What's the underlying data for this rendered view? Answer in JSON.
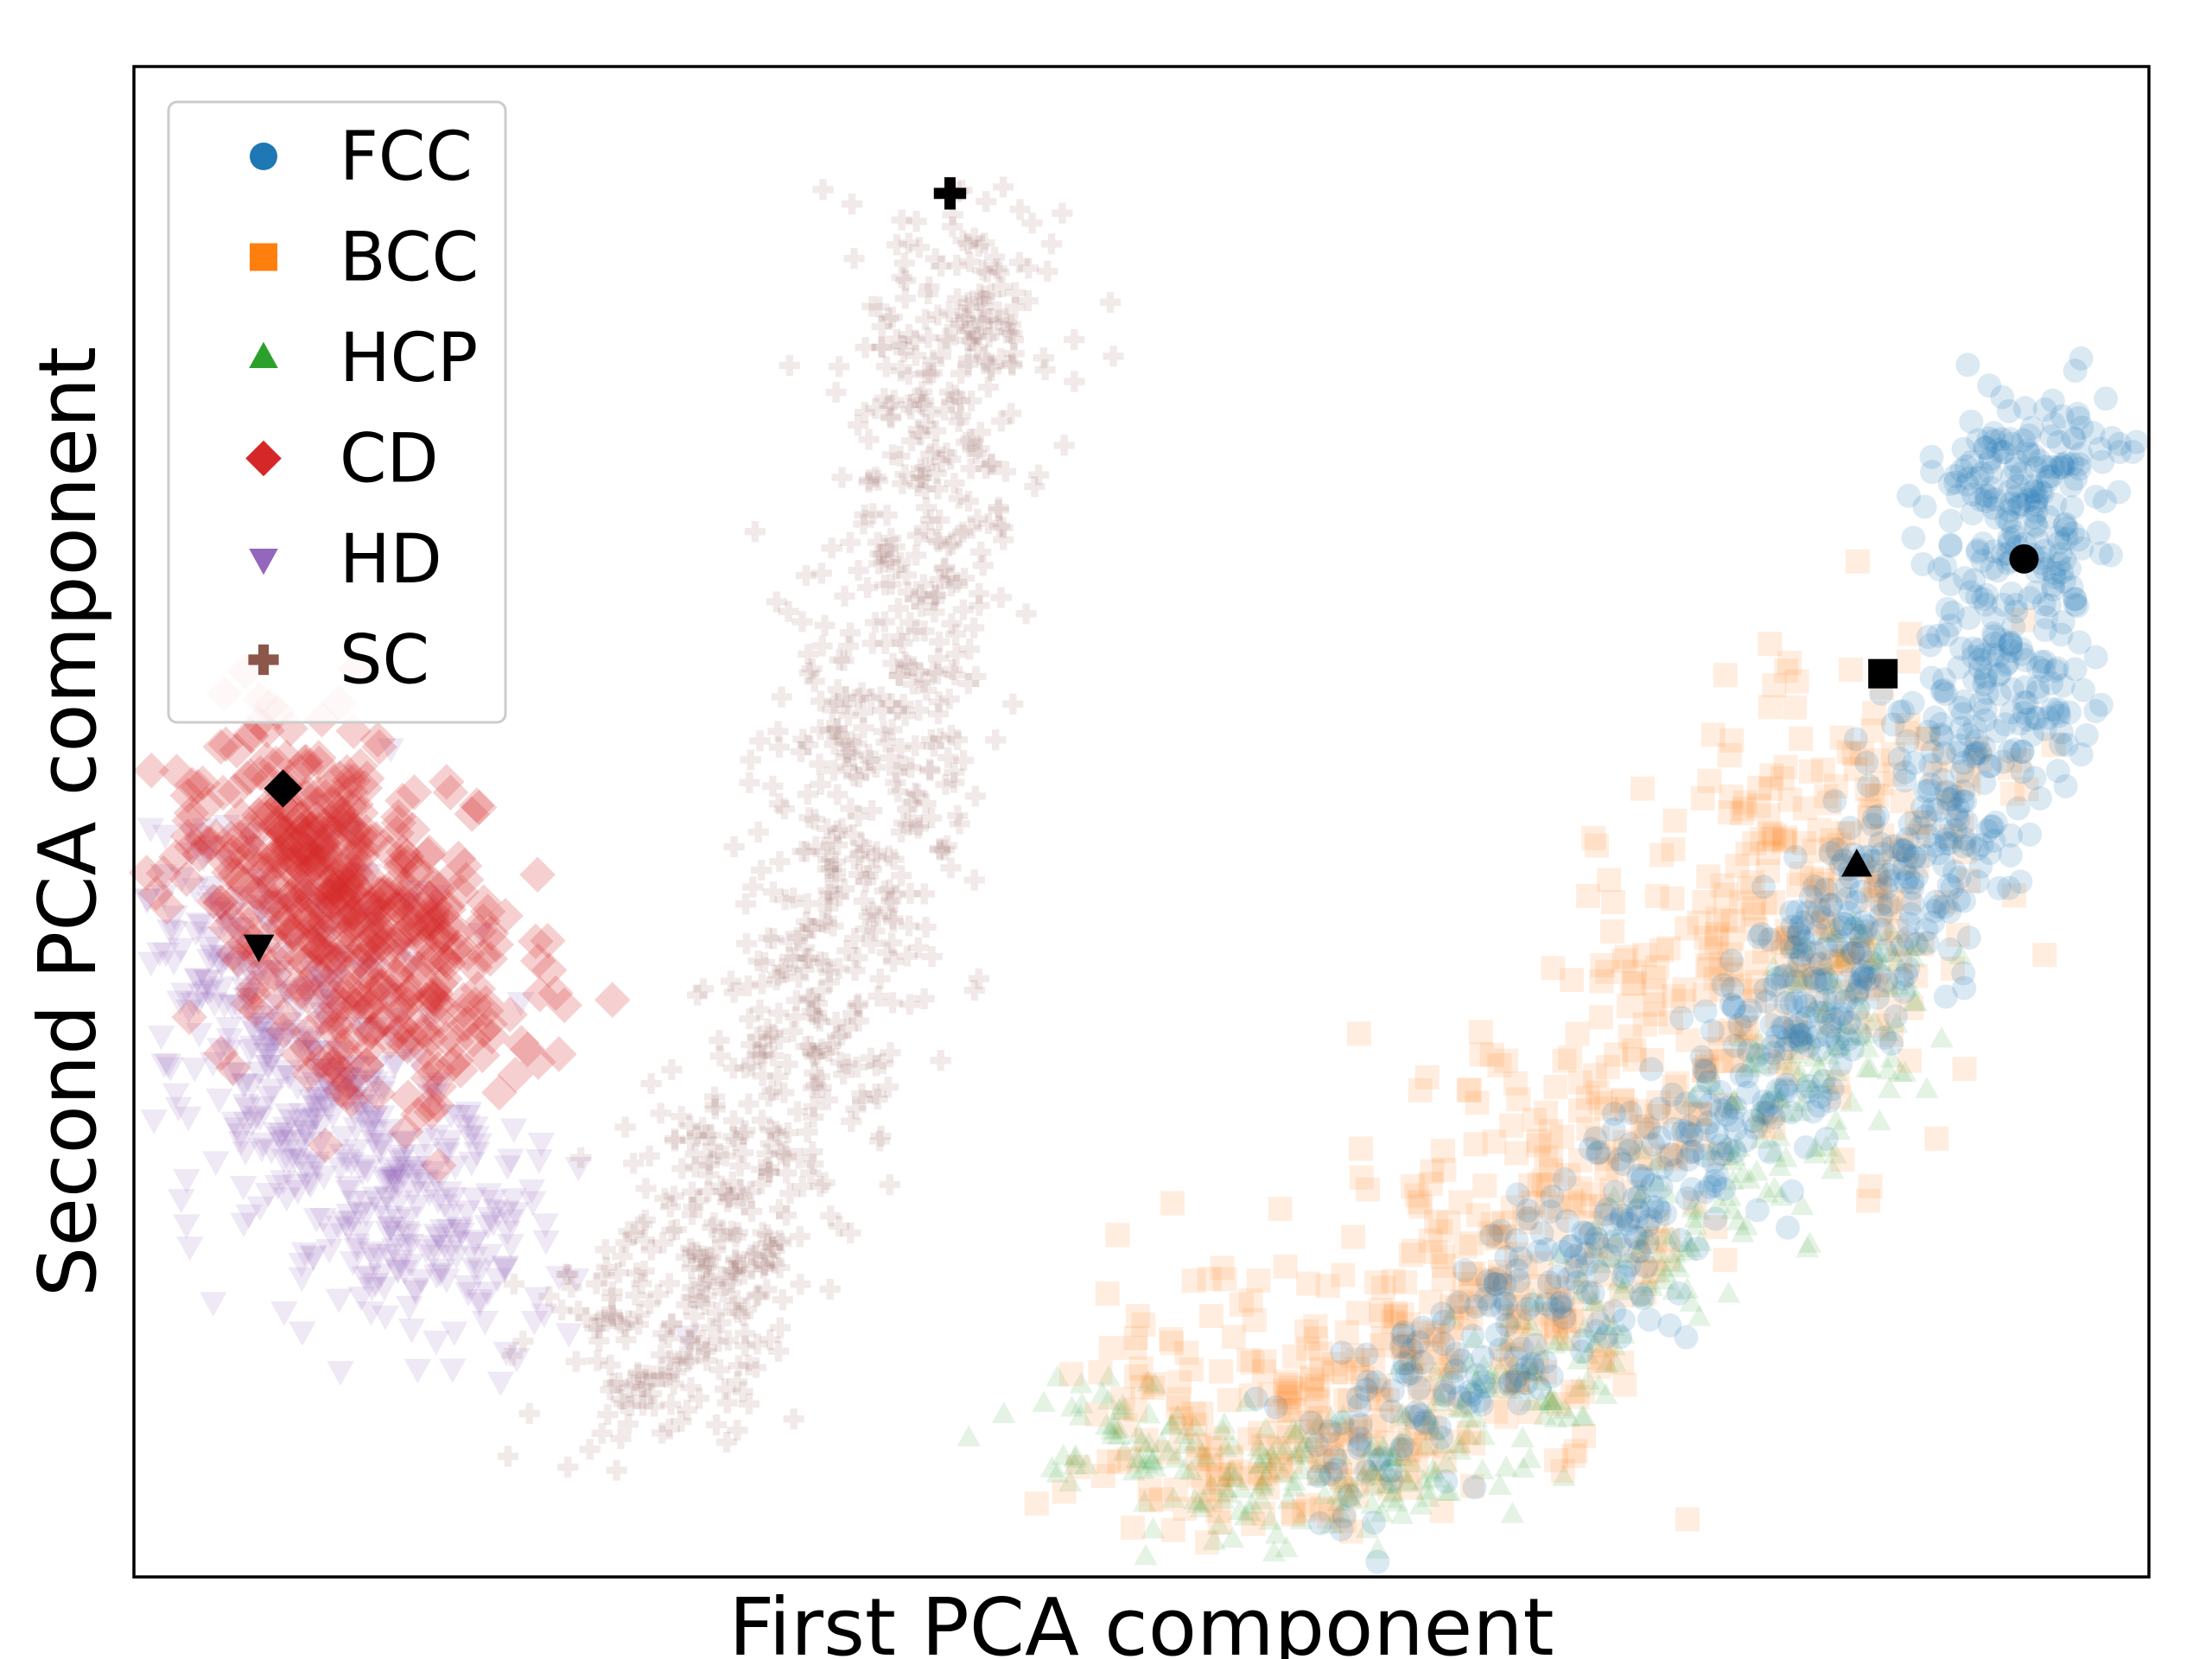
{
  "chart_data": {
    "type": "scatter",
    "title": "",
    "xlabel": "First PCA component",
    "ylabel": "Second PCA component",
    "xlim": [
      0,
      100
    ],
    "ylim": [
      0,
      100
    ],
    "xticks": [],
    "yticks": [],
    "grid": false,
    "legend_position": "upper left",
    "series": [
      {
        "name": "FCC",
        "marker": "circle",
        "color": "#1f77b4",
        "reference_point": [
          93.8,
          67.4
        ],
        "cloud_path": [
          [
            60,
            7.5
          ],
          [
            68,
            16
          ],
          [
            75,
            25
          ],
          [
            80,
            32
          ],
          [
            84,
            39
          ],
          [
            87,
            45
          ],
          [
            90,
            51
          ],
          [
            92.5,
            59
          ],
          [
            94,
            67
          ],
          [
            94.2,
            72.5
          ],
          [
            93.5,
            75
          ]
        ],
        "cloud_spread": 2.5
      },
      {
        "name": "BCC",
        "marker": "square",
        "color": "#ff7f0e",
        "reference_point": [
          86.8,
          59.8
        ],
        "cloud_path": [
          [
            52,
            12
          ],
          [
            58,
            10
          ],
          [
            64,
            14
          ],
          [
            69,
            21
          ],
          [
            74,
            29
          ],
          [
            79,
            38
          ],
          [
            84,
            47
          ],
          [
            88,
            56
          ]
        ],
        "cloud_spread": 4.5
      },
      {
        "name": "HCP",
        "marker": "triangle-up",
        "color": "#2ca02c",
        "reference_point": [
          85.5,
          47.1
        ],
        "cloud_path": [
          [
            47,
            12
          ],
          [
            54,
            6.5
          ],
          [
            60,
            6
          ],
          [
            66,
            10
          ],
          [
            72,
            16
          ],
          [
            78,
            24
          ],
          [
            83,
            33
          ],
          [
            87,
            42
          ]
        ],
        "cloud_spread": 2.2
      },
      {
        "name": "CD",
        "marker": "diamond",
        "color": "#d62728",
        "reference_point": [
          7.4,
          52.2
        ],
        "cloud_path": [
          [
            6.5,
            52
          ],
          [
            8.5,
            49
          ],
          [
            11,
            45
          ],
          [
            13,
            40
          ],
          [
            14.5,
            35
          ]
        ],
        "cloud_spread": 3.4
      },
      {
        "name": "HD",
        "marker": "triangle-down",
        "color": "#9467bd",
        "reference_point": [
          6.2,
          41.8
        ],
        "cloud_path": [
          [
            4,
            45
          ],
          [
            6,
            40
          ],
          [
            8.5,
            33
          ],
          [
            11,
            28
          ],
          [
            14,
            23
          ],
          [
            17,
            20
          ]
        ],
        "cloud_spread": 3.6
      },
      {
        "name": "SC",
        "marker": "plus",
        "color": "#8c564b",
        "reference_point": [
          40.5,
          91.6
        ],
        "cloud_path": [
          [
            25,
            12
          ],
          [
            28,
            18
          ],
          [
            31,
            26
          ],
          [
            33.5,
            36
          ],
          [
            35.5,
            46
          ],
          [
            37.5,
            56
          ],
          [
            39.5,
            68
          ],
          [
            40.5,
            80
          ],
          [
            41,
            88
          ]
        ],
        "cloud_spread": 2.8
      }
    ]
  }
}
